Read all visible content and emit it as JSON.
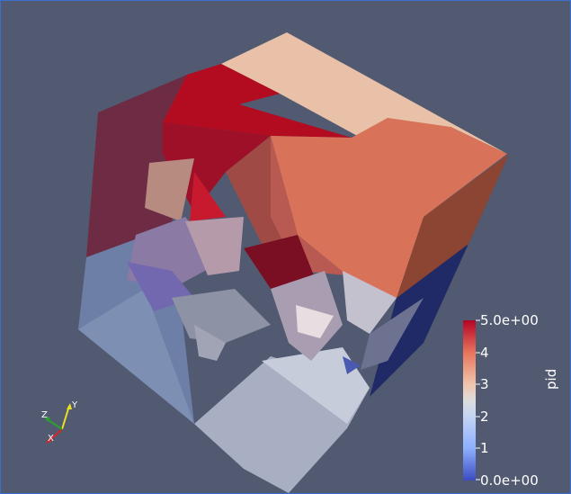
{
  "colorbar": {
    "title": "pid",
    "max_label": "5.0e+00",
    "min_label": "0.0e+00",
    "ticks": [
      "4",
      "3",
      "2",
      "1"
    ],
    "range": [
      0,
      5
    ],
    "colors": {
      "high": "#b40426",
      "mid": "#dddddd",
      "low": "#3b4cc0"
    }
  },
  "orientation_axes": {
    "x_label": "X",
    "y_label": "Y",
    "z_label": "Z",
    "colors": {
      "x": "#d62728",
      "y": "#e8e020",
      "z": "#2ca02c"
    }
  },
  "background_color": "#525a71"
}
